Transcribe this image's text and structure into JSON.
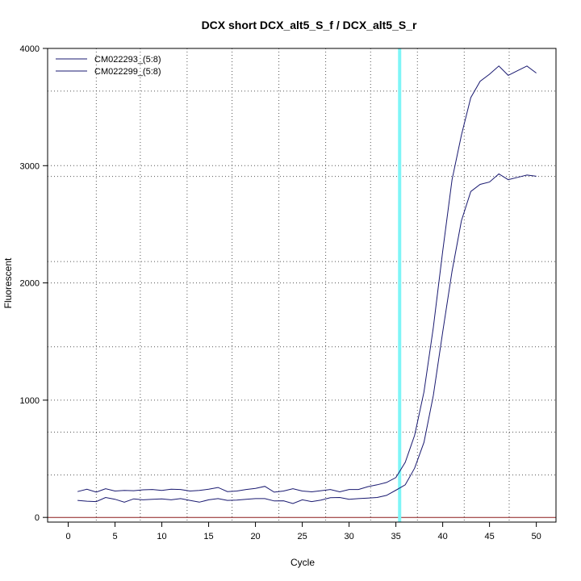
{
  "chart_data": {
    "type": "line",
    "title": "DCX short DCX_alt5_S_f / DCX_alt5_S_r",
    "xlabel": "Cycle",
    "ylabel": "Fluorescent",
    "xlim": [
      -2.2,
      52.1
    ],
    "ylim": [
      -40,
      4000
    ],
    "xticks": [
      0,
      5,
      10,
      15,
      20,
      25,
      30,
      35,
      40,
      45,
      50
    ],
    "yticks": [
      0,
      1000,
      2000,
      3000,
      4000
    ],
    "grid": {
      "dotted_vertical_x": [
        3,
        7.7,
        12.7,
        17.5,
        22.5,
        27.5,
        32.3,
        37.3,
        42.3,
        47.1
      ],
      "dotted_horizontal_y": [
        1000,
        2000,
        3000,
        4000,
        3636,
        2908,
        2182,
        1455,
        727,
        362
      ]
    },
    "threshold_line": {
      "x": 35.4,
      "color": "#7ff5f7"
    },
    "baseline": {
      "y": 0,
      "color": "#8b1a1a"
    },
    "legend_position": "top-left",
    "series": [
      {
        "name": "CM022293_(5:8)",
        "color": "#191970",
        "x": [
          1,
          2,
          3,
          4,
          5,
          6,
          7,
          8,
          9,
          10,
          11,
          12,
          13,
          14,
          15,
          16,
          17,
          18,
          19,
          20,
          21,
          22,
          23,
          24,
          25,
          26,
          27,
          28,
          29,
          30,
          31,
          32,
          33,
          34,
          35,
          36,
          37,
          38,
          39,
          40,
          41,
          42,
          43,
          44,
          45,
          46,
          47,
          48,
          49,
          50
        ],
        "values": [
          220,
          240,
          215,
          245,
          225,
          230,
          228,
          235,
          238,
          230,
          240,
          238,
          225,
          230,
          240,
          255,
          220,
          225,
          238,
          248,
          265,
          215,
          225,
          245,
          225,
          218,
          228,
          238,
          218,
          238,
          238,
          262,
          278,
          298,
          340,
          470,
          700,
          1070,
          1620,
          2270,
          2880,
          3260,
          3580,
          3720,
          3780,
          3850,
          3770,
          3810,
          3850,
          3790
        ]
      },
      {
        "name": "CM022299_(5:8)",
        "color": "#191970",
        "x": [
          1,
          2,
          3,
          4,
          5,
          6,
          7,
          8,
          9,
          10,
          11,
          12,
          13,
          14,
          15,
          16,
          17,
          18,
          19,
          20,
          21,
          22,
          23,
          24,
          25,
          26,
          27,
          28,
          29,
          30,
          31,
          32,
          33,
          34,
          35,
          36,
          37,
          38,
          39,
          40,
          41,
          42,
          43,
          44,
          45,
          46,
          47,
          48,
          49,
          50
        ],
        "values": [
          145,
          138,
          135,
          170,
          155,
          130,
          158,
          150,
          155,
          158,
          150,
          160,
          145,
          130,
          150,
          160,
          145,
          148,
          155,
          160,
          160,
          140,
          142,
          118,
          150,
          135,
          148,
          168,
          170,
          155,
          160,
          165,
          170,
          188,
          232,
          278,
          420,
          640,
          1040,
          1580,
          2100,
          2530,
          2780,
          2840,
          2860,
          2930,
          2880,
          2900,
          2920,
          2910
        ]
      }
    ]
  }
}
